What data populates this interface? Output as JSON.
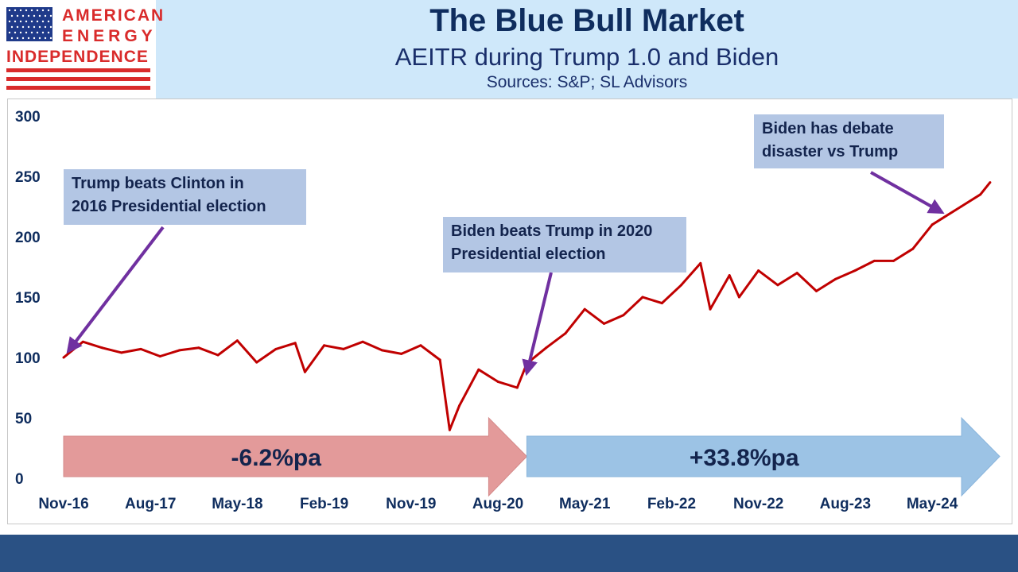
{
  "logo": {
    "line1": "AMERICAN",
    "line2": "ENERGY",
    "line3": "INDEPENDENCE"
  },
  "header": {
    "title": "The Blue Bull Market",
    "subtitle": "AEITR during Trump 1.0 and Biden",
    "sources": "Sources: S&P; SL Advisors"
  },
  "chart_data": {
    "type": "line",
    "title": "The Blue Bull Market",
    "subtitle": "AEITR during Trump 1.0 and Biden",
    "xlabel": "",
    "ylabel": "",
    "ylim": [
      0,
      300
    ],
    "yticks": [
      "0",
      "50",
      "100",
      "150",
      "200",
      "250",
      "300"
    ],
    "xticks": [
      "Nov-16",
      "Aug-17",
      "May-18",
      "Feb-19",
      "Nov-19",
      "Aug-20",
      "May-21",
      "Feb-22",
      "Nov-22",
      "Aug-23",
      "May-24"
    ],
    "grid": false,
    "legend": "none",
    "series": [
      {
        "color": "#c00000",
        "x": [
          "2016-11",
          "2017-01",
          "2017-03",
          "2017-05",
          "2017-07",
          "2017-09",
          "2017-11",
          "2018-01",
          "2018-03",
          "2018-05",
          "2018-07",
          "2018-09",
          "2018-11",
          "2018-12",
          "2019-02",
          "2019-04",
          "2019-06",
          "2019-08",
          "2019-10",
          "2019-12",
          "2020-02",
          "2020-03",
          "2020-04",
          "2020-06",
          "2020-08",
          "2020-10",
          "2020-11",
          "2021-01",
          "2021-03",
          "2021-05",
          "2021-07",
          "2021-09",
          "2021-11",
          "2022-01",
          "2022-03",
          "2022-05",
          "2022-06",
          "2022-08",
          "2022-09",
          "2022-11",
          "2023-01",
          "2023-03",
          "2023-05",
          "2023-07",
          "2023-09",
          "2023-11",
          "2024-01",
          "2024-03",
          "2024-05",
          "2024-06",
          "2024-08",
          "2024-10",
          "2024-11"
        ],
        "values": [
          100,
          113,
          108,
          104,
          107,
          101,
          106,
          108,
          102,
          114,
          96,
          107,
          112,
          88,
          110,
          107,
          113,
          106,
          103,
          110,
          98,
          40,
          60,
          90,
          80,
          75,
          95,
          108,
          120,
          140,
          128,
          135,
          150,
          145,
          160,
          178,
          140,
          168,
          150,
          172,
          160,
          170,
          155,
          165,
          172,
          180,
          180,
          190,
          210,
          215,
          225,
          235,
          245
        ]
      }
    ],
    "bands": [
      {
        "label": "-6.2%pa",
        "start": "2016-11",
        "end": "2020-11",
        "color": "#e39a9a"
      },
      {
        "label": "+33.8%pa",
        "start": "2020-11",
        "end": "2024-12",
        "color": "#9cc3e5"
      }
    ],
    "annotations": [
      {
        "text": [
          "Trump beats Clinton in",
          "2016 Presidential election"
        ],
        "target_x": "2016-11",
        "target_y": 100
      },
      {
        "text": [
          "Biden beats Trump in 2020",
          "Presidential election"
        ],
        "target_x": "2020-11",
        "target_y": 82
      },
      {
        "text": [
          "Biden has debate",
          "disaster vs Trump"
        ],
        "target_x": "2024-06",
        "target_y": 215
      }
    ]
  }
}
